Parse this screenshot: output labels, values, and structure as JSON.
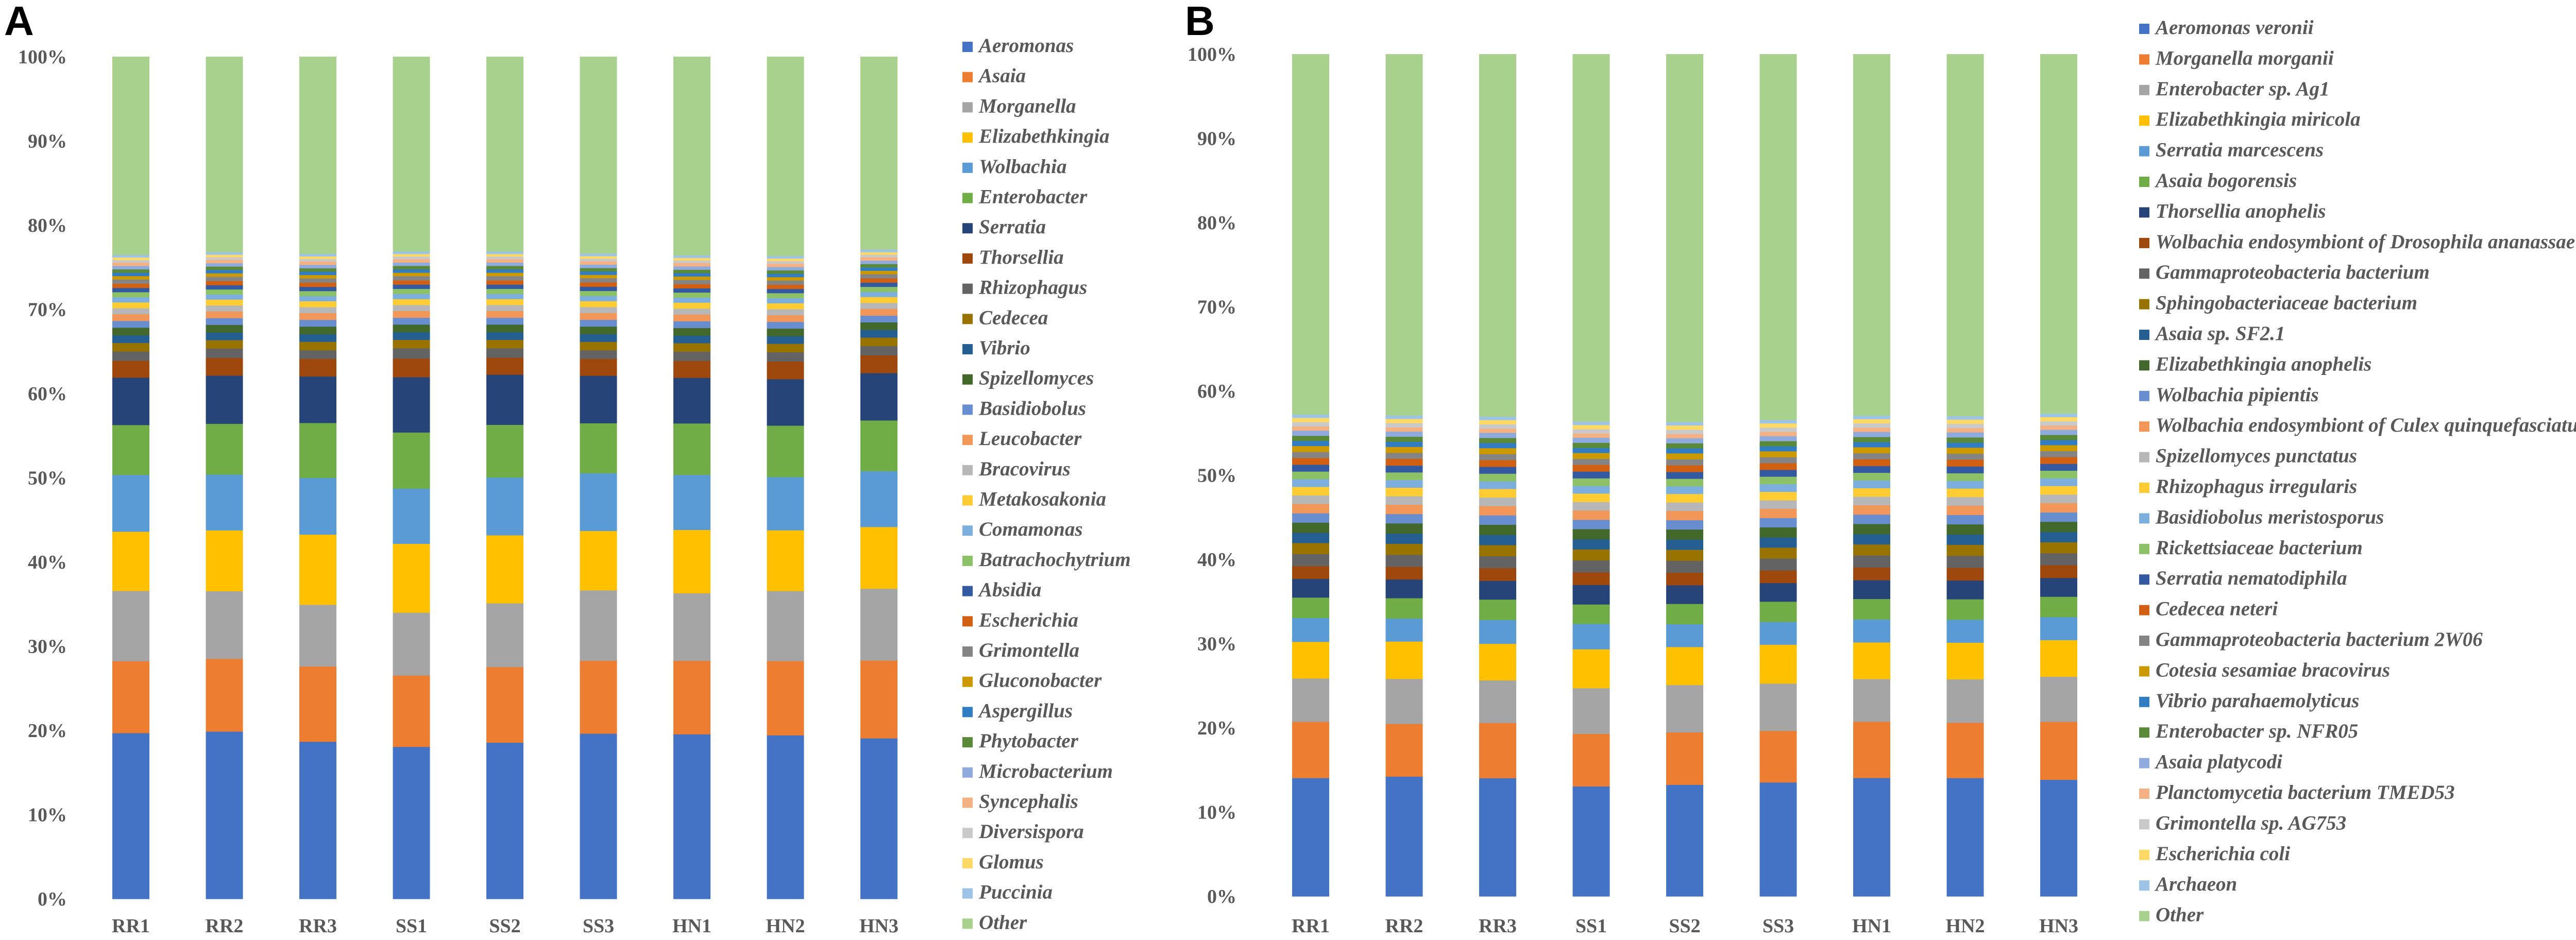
{
  "chart_data": [
    {
      "panel": "A",
      "type": "bar",
      "stacked": true,
      "percent": true,
      "categories": [
        "RR1",
        "RR2",
        "RR3",
        "SS1",
        "SS2",
        "SS3",
        "HN1",
        "HN2",
        "HN3"
      ],
      "y_ticks": [
        "0%",
        "10%",
        "20%",
        "30%",
        "40%",
        "50%",
        "60%",
        "70%",
        "80%",
        "90%",
        "100%"
      ],
      "ylim": [
        0,
        100
      ],
      "legend_position": "right",
      "series": [
        {
          "name": "Aeromonas",
          "color": "#4472C4",
          "values": [
            19.6,
            19.8,
            18.6,
            17.9,
            18.4,
            19.5,
            19.5,
            19.4,
            19.0
          ]
        },
        {
          "name": "Asaia",
          "color": "#ED7D31",
          "values": [
            8.5,
            8.6,
            8.9,
            8.4,
            8.9,
            8.6,
            8.7,
            8.8,
            9.2
          ]
        },
        {
          "name": "Morganella",
          "color": "#A5A5A5",
          "values": [
            8.3,
            8.0,
            7.3,
            7.4,
            7.5,
            8.3,
            8.0,
            8.3,
            8.5
          ]
        },
        {
          "name": "Elizabethkingia",
          "color": "#FFC000",
          "values": [
            7.0,
            7.2,
            8.3,
            8.1,
            8.0,
            7.0,
            7.5,
            7.2,
            7.3
          ]
        },
        {
          "name": "Wolbachia",
          "color": "#5B9BD5",
          "values": [
            6.7,
            6.6,
            6.7,
            6.5,
            6.8,
            6.8,
            6.5,
            6.3,
            6.6
          ]
        },
        {
          "name": "Enterobacter",
          "color": "#70AD47",
          "values": [
            5.9,
            6.0,
            6.5,
            6.6,
            6.2,
            5.9,
            6.1,
            6.1,
            6.0
          ]
        },
        {
          "name": "Serratia",
          "color": "#264478",
          "values": [
            5.6,
            5.7,
            5.5,
            6.5,
            5.9,
            5.6,
            5.4,
            5.5,
            5.6
          ]
        },
        {
          "name": "Thorsellia",
          "color": "#9E480E",
          "values": [
            2.0,
            2.1,
            2.1,
            2.2,
            2.0,
            2.0,
            2.0,
            2.1,
            2.1
          ]
        },
        {
          "name": "Rhizophagus",
          "color": "#636363",
          "values": [
            1.1,
            1.1,
            1.0,
            1.2,
            1.1,
            1.0,
            1.1,
            1.1,
            1.1
          ]
        },
        {
          "name": "Cedecea",
          "color": "#997300",
          "values": [
            1.0,
            1.0,
            1.0,
            1.0,
            1.0,
            1.0,
            1.0,
            1.0,
            1.0
          ]
        },
        {
          "name": "Vibrio",
          "color": "#255E91",
          "values": [
            0.9,
            0.9,
            0.9,
            0.9,
            0.9,
            0.9,
            0.9,
            0.9,
            0.9
          ]
        },
        {
          "name": "Spizellomyces",
          "color": "#43682B",
          "values": [
            0.9,
            0.9,
            0.9,
            0.9,
            0.9,
            0.9,
            0.9,
            0.9,
            0.9
          ]
        },
        {
          "name": "Basidiobolus",
          "color": "#698ED0",
          "values": [
            0.8,
            0.8,
            0.8,
            0.8,
            0.8,
            0.8,
            0.8,
            0.8,
            0.8
          ]
        },
        {
          "name": "Leucobacter",
          "color": "#F1975A",
          "values": [
            0.8,
            0.8,
            0.8,
            0.8,
            0.8,
            0.8,
            0.8,
            0.8,
            0.8
          ]
        },
        {
          "name": "Bracovirus",
          "color": "#B7B7B7",
          "values": [
            0.7,
            0.7,
            0.7,
            0.7,
            0.7,
            0.7,
            0.7,
            0.7,
            0.7
          ]
        },
        {
          "name": "Metakosakonia",
          "color": "#FFCD33",
          "values": [
            0.7,
            0.7,
            0.7,
            0.7,
            0.7,
            0.7,
            0.7,
            0.7,
            0.7
          ]
        },
        {
          "name": "Comamonas",
          "color": "#7CAFDD",
          "values": [
            0.6,
            0.6,
            0.6,
            0.6,
            0.6,
            0.6,
            0.6,
            0.6,
            0.6
          ]
        },
        {
          "name": "Batrachochytrium",
          "color": "#8CC168",
          "values": [
            0.6,
            0.6,
            0.6,
            0.6,
            0.6,
            0.6,
            0.6,
            0.6,
            0.6
          ]
        },
        {
          "name": "Absidia",
          "color": "#335AA1",
          "values": [
            0.5,
            0.5,
            0.5,
            0.5,
            0.5,
            0.5,
            0.5,
            0.5,
            0.5
          ]
        },
        {
          "name": "Escherichia",
          "color": "#D26012",
          "values": [
            0.5,
            0.5,
            0.5,
            0.5,
            0.5,
            0.5,
            0.5,
            0.5,
            0.5
          ]
        },
        {
          "name": "Grimontella",
          "color": "#848484",
          "values": [
            0.5,
            0.5,
            0.5,
            0.5,
            0.5,
            0.5,
            0.5,
            0.5,
            0.5
          ]
        },
        {
          "name": "Gluconobacter",
          "color": "#CC9A00",
          "values": [
            0.4,
            0.4,
            0.4,
            0.4,
            0.4,
            0.4,
            0.4,
            0.4,
            0.4
          ]
        },
        {
          "name": "Aspergillus",
          "color": "#327DC2",
          "values": [
            0.4,
            0.4,
            0.4,
            0.4,
            0.4,
            0.4,
            0.4,
            0.4,
            0.4
          ]
        },
        {
          "name": "Phytobacter",
          "color": "#5A8A39",
          "values": [
            0.4,
            0.4,
            0.4,
            0.4,
            0.4,
            0.4,
            0.4,
            0.4,
            0.4
          ]
        },
        {
          "name": "Microbacterium",
          "color": "#8FAADC",
          "values": [
            0.4,
            0.4,
            0.4,
            0.4,
            0.4,
            0.4,
            0.4,
            0.4,
            0.4
          ]
        },
        {
          "name": "Syncephalis",
          "color": "#F4B183",
          "values": [
            0.4,
            0.4,
            0.4,
            0.4,
            0.4,
            0.4,
            0.4,
            0.4,
            0.4
          ]
        },
        {
          "name": "Diversispora",
          "color": "#C9C9C9",
          "values": [
            0.3,
            0.3,
            0.3,
            0.3,
            0.3,
            0.3,
            0.3,
            0.3,
            0.3
          ]
        },
        {
          "name": "Glomus",
          "color": "#FFD966",
          "values": [
            0.3,
            0.3,
            0.3,
            0.3,
            0.3,
            0.3,
            0.3,
            0.3,
            0.3
          ]
        },
        {
          "name": "Puccinia",
          "color": "#9DC3E6",
          "values": [
            0.3,
            0.3,
            0.3,
            0.3,
            0.3,
            0.3,
            0.3,
            0.3,
            0.3
          ]
        },
        {
          "name": "Other",
          "color": "#A9D18E",
          "values": [
            23.4,
            23.1,
            23.3,
            22.9,
            22.9,
            23.2,
            23.5,
            23.6,
            22.8
          ]
        }
      ]
    },
    {
      "panel": "B",
      "type": "bar",
      "stacked": true,
      "percent": true,
      "categories": [
        "RR1",
        "RR2",
        "RR3",
        "SS1",
        "SS2",
        "SS3",
        "HN1",
        "HN2",
        "HN3"
      ],
      "y_ticks": [
        "0%",
        "10%",
        "20%",
        "30%",
        "40%",
        "50%",
        "60%",
        "70%",
        "80%",
        "90%",
        "100%"
      ],
      "ylim": [
        0,
        100
      ],
      "legend_position": "right",
      "series": [
        {
          "name": "Aeromonas veronii",
          "color": "#4472C4",
          "values": [
            13.9,
            14.1,
            13.9,
            13.0,
            13.2,
            13.5,
            13.9,
            13.9,
            13.7
          ]
        },
        {
          "name": "Morganella morganii",
          "color": "#ED7D31",
          "values": [
            6.6,
            6.2,
            6.5,
            6.2,
            6.2,
            6.1,
            6.6,
            6.5,
            6.8
          ]
        },
        {
          "name": "Enterobacter sp. Ag1",
          "color": "#A5A5A5",
          "values": [
            5.1,
            5.3,
            5.0,
            5.4,
            5.6,
            5.6,
            5.0,
            5.1,
            5.3
          ]
        },
        {
          "name": "Elizabethkingia miricola",
          "color": "#FFC000",
          "values": [
            4.3,
            4.4,
            4.3,
            4.6,
            4.5,
            4.6,
            4.3,
            4.3,
            4.3
          ]
        },
        {
          "name": "Serratia marcescens",
          "color": "#5B9BD5",
          "values": [
            2.8,
            2.7,
            2.8,
            3.0,
            2.7,
            2.7,
            2.7,
            2.7,
            2.7
          ]
        },
        {
          "name": "Asaia bogorensis",
          "color": "#70AD47",
          "values": [
            2.4,
            2.4,
            2.4,
            2.3,
            2.4,
            2.4,
            2.4,
            2.4,
            2.4
          ]
        },
        {
          "name": "Thorsellia anophelis",
          "color": "#264478",
          "values": [
            2.2,
            2.2,
            2.2,
            2.3,
            2.2,
            2.2,
            2.2,
            2.2,
            2.2
          ]
        },
        {
          "name": "Wolbachia endosymbiont of Drosophila ananassae",
          "color": "#9E480E",
          "values": [
            1.5,
            1.5,
            1.5,
            1.5,
            1.5,
            1.5,
            1.5,
            1.5,
            1.5
          ]
        },
        {
          "name": "Gammaproteobacteria bacterium",
          "color": "#636363",
          "values": [
            1.4,
            1.4,
            1.4,
            1.4,
            1.4,
            1.4,
            1.4,
            1.4,
            1.4
          ]
        },
        {
          "name": "Sphingobacteriaceae bacterium",
          "color": "#997300",
          "values": [
            1.3,
            1.3,
            1.3,
            1.3,
            1.3,
            1.3,
            1.3,
            1.3,
            1.3
          ]
        },
        {
          "name": "Asaia sp. SF2.1",
          "color": "#255E91",
          "values": [
            1.2,
            1.2,
            1.2,
            1.2,
            1.2,
            1.2,
            1.2,
            1.2,
            1.2
          ]
        },
        {
          "name": "Elizabethkingia anophelis",
          "color": "#43682B",
          "values": [
            1.2,
            1.2,
            1.2,
            1.2,
            1.2,
            1.2,
            1.2,
            1.2,
            1.2
          ]
        },
        {
          "name": "Wolbachia pipientis",
          "color": "#698ED0",
          "values": [
            1.1,
            1.1,
            1.1,
            1.1,
            1.1,
            1.1,
            1.1,
            1.1,
            1.1
          ]
        },
        {
          "name": "Wolbachia endosymbiont of Culex quinquefasciatus",
          "color": "#F1975A",
          "values": [
            1.1,
            1.1,
            1.1,
            1.1,
            1.1,
            1.1,
            1.1,
            1.1,
            1.1
          ]
        },
        {
          "name": "Spizellomyces punctatus",
          "color": "#B7B7B7",
          "values": [
            1.0,
            1.0,
            1.0,
            1.0,
            1.0,
            1.0,
            1.0,
            1.0,
            1.0
          ]
        },
        {
          "name": "Rhizophagus irregularis",
          "color": "#FFCD33",
          "values": [
            1.0,
            1.0,
            1.0,
            1.0,
            1.0,
            1.0,
            1.0,
            1.0,
            1.0
          ]
        },
        {
          "name": "Basidiobolus meristosporus",
          "color": "#7CAFDD",
          "values": [
            0.9,
            0.9,
            0.9,
            0.9,
            0.9,
            0.9,
            0.9,
            0.9,
            0.9
          ]
        },
        {
          "name": "Rickettsiaceae bacterium",
          "color": "#8CC168",
          "values": [
            0.9,
            0.9,
            0.9,
            0.9,
            0.9,
            0.9,
            0.9,
            0.9,
            0.9
          ]
        },
        {
          "name": "Serratia nematodiphila",
          "color": "#335AA1",
          "values": [
            0.8,
            0.8,
            0.8,
            0.8,
            0.8,
            0.8,
            0.8,
            0.8,
            0.8
          ]
        },
        {
          "name": "Cedecea neteri",
          "color": "#D26012",
          "values": [
            0.8,
            0.8,
            0.8,
            0.8,
            0.8,
            0.8,
            0.8,
            0.8,
            0.8
          ]
        },
        {
          "name": "Gammaproteobacteria bacterium 2W06",
          "color": "#848484",
          "values": [
            0.7,
            0.7,
            0.7,
            0.7,
            0.7,
            0.7,
            0.7,
            0.7,
            0.7
          ]
        },
        {
          "name": "Cotesia sesamiae bracovirus",
          "color": "#CC9A00",
          "values": [
            0.7,
            0.7,
            0.7,
            0.7,
            0.7,
            0.7,
            0.7,
            0.7,
            0.7
          ]
        },
        {
          "name": "Vibrio parahaemolyticus",
          "color": "#327DC2",
          "values": [
            0.6,
            0.6,
            0.6,
            0.6,
            0.6,
            0.6,
            0.6,
            0.6,
            0.6
          ]
        },
        {
          "name": "Enterobacter sp. NFR05",
          "color": "#5A8A39",
          "values": [
            0.6,
            0.6,
            0.6,
            0.6,
            0.6,
            0.6,
            0.6,
            0.6,
            0.6
          ]
        },
        {
          "name": "Asaia platycodi",
          "color": "#8FAADC",
          "values": [
            0.6,
            0.6,
            0.6,
            0.6,
            0.6,
            0.6,
            0.6,
            0.6,
            0.6
          ]
        },
        {
          "name": "Planctomycetia bacterium TMED53",
          "color": "#F4B183",
          "values": [
            0.5,
            0.5,
            0.5,
            0.5,
            0.5,
            0.5,
            0.5,
            0.5,
            0.5
          ]
        },
        {
          "name": "Grimontella sp. AG753",
          "color": "#C9C9C9",
          "values": [
            0.5,
            0.5,
            0.5,
            0.5,
            0.5,
            0.5,
            0.5,
            0.5,
            0.5
          ]
        },
        {
          "name": "Escherichia coli",
          "color": "#FFD966",
          "values": [
            0.5,
            0.5,
            0.5,
            0.5,
            0.5,
            0.5,
            0.5,
            0.5,
            0.5
          ]
        },
        {
          "name": "Archaeon",
          "color": "#9DC3E6",
          "values": [
            0.4,
            0.4,
            0.4,
            0.4,
            0.4,
            0.4,
            0.4,
            0.4,
            0.4
          ]
        },
        {
          "name": "Other",
          "color": "#A9D18E",
          "values": [
            42.3,
            42.5,
            42.6,
            43.4,
            43.5,
            43.3,
            42.4,
            42.5,
            42.2
          ]
        }
      ]
    }
  ]
}
